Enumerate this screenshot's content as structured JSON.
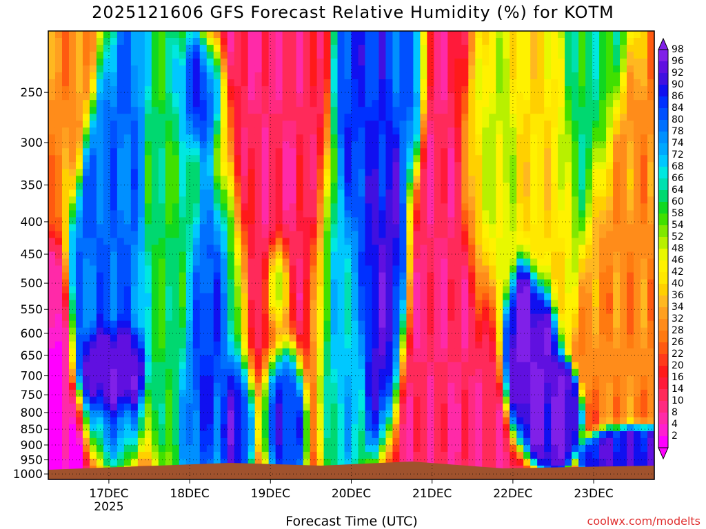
{
  "chart_data": {
    "type": "heatmap",
    "title": "2025121606 GFS Forecast Relative Humidity (%) for KOTM",
    "xlabel": "Forecast Time (UTC)",
    "ylabel": "",
    "credit": "coolwx.com/modelts",
    "x_ticks": [
      {
        "label": "17DEC",
        "sublabel": "2025",
        "hours": 18
      },
      {
        "label": "18DEC",
        "sublabel": "",
        "hours": 42
      },
      {
        "label": "19DEC",
        "sublabel": "",
        "hours": 66
      },
      {
        "label": "20DEC",
        "sublabel": "",
        "hours": 90
      },
      {
        "label": "21DEC",
        "sublabel": "",
        "hours": 114
      },
      {
        "label": "22DEC",
        "sublabel": "",
        "hours": 138
      },
      {
        "label": "23DEC",
        "sublabel": "",
        "hours": 162
      }
    ],
    "x_range_hours": [
      0,
      180
    ],
    "y_ticks": [
      250,
      300,
      350,
      400,
      450,
      500,
      550,
      600,
      650,
      700,
      750,
      800,
      850,
      900,
      950,
      1000
    ],
    "y_range_hpa": [
      200,
      1020
    ],
    "y_scale": "log",
    "colorbar_levels": [
      2,
      4,
      8,
      10,
      14,
      16,
      20,
      22,
      26,
      28,
      32,
      34,
      36,
      40,
      42,
      46,
      48,
      52,
      54,
      58,
      60,
      64,
      66,
      68,
      72,
      74,
      78,
      80,
      84,
      86,
      90,
      92,
      96,
      98
    ],
    "colorbar_colors": [
      "#ff00ff",
      "#ff1fd0",
      "#ff2aa8",
      "#ff2a80",
      "#ff2a5a",
      "#ff1a3a",
      "#ff1a1a",
      "#ff3a1a",
      "#ff5a10",
      "#ff7a10",
      "#ff8c1a",
      "#ffa020",
      "#ffb820",
      "#ffd000",
      "#ffe800",
      "#fff200",
      "#e8f800",
      "#b8f000",
      "#80e800",
      "#40e000",
      "#10d820",
      "#00d870",
      "#00e0b0",
      "#00e8e0",
      "#00c8ff",
      "#00a8ff",
      "#0090ff",
      "#0070ff",
      "#0050ff",
      "#0030ff",
      "#1010f0",
      "#4010e0",
      "#6010e0",
      "#8020e8"
    ],
    "colorbar_labels": [
      "98",
      "96",
      "92",
      "90",
      "86",
      "84",
      "80",
      "78",
      "74",
      "72",
      "68",
      "66",
      "64",
      "60",
      "58",
      "54",
      "52",
      "48",
      "46",
      "42",
      "40",
      "36",
      "34",
      "32",
      "28",
      "26",
      "22",
      "20",
      "16",
      "14",
      "10",
      "8",
      "4",
      "2"
    ],
    "terrain_color": "#a0522d",
    "grid": true,
    "rh_blobs": [
      {
        "t": 3,
        "p": 200,
        "rh": 30,
        "sx": 8,
        "sy": 0.25
      },
      {
        "t": 20,
        "p": 360,
        "rh": 80,
        "sx": 5,
        "sy": 0.35
      },
      {
        "t": 20,
        "p": 660,
        "rh": 96,
        "sx": 4,
        "sy": 0.08
      },
      {
        "t": 38,
        "p": 380,
        "rh": 60,
        "sx": 6,
        "sy": 0.35
      },
      {
        "t": 46,
        "p": 260,
        "rh": 92,
        "sx": 5,
        "sy": 0.15
      },
      {
        "t": 50,
        "p": 480,
        "rh": 90,
        "sx": 6,
        "sy": 0.35
      },
      {
        "t": 56,
        "p": 800,
        "rh": 95,
        "sx": 3,
        "sy": 0.15
      },
      {
        "t": 62,
        "p": 300,
        "rh": 10,
        "sx": 10,
        "sy": 0.6
      },
      {
        "t": 70,
        "p": 780,
        "rh": 90,
        "sx": 4,
        "sy": 0.15
      },
      {
        "t": 68,
        "p": 500,
        "rh": 70,
        "sx": 2,
        "sy": 0.12
      },
      {
        "t": 78,
        "p": 400,
        "rh": 12,
        "sx": 4,
        "sy": 0.4
      },
      {
        "t": 85,
        "p": 500,
        "rh": 70,
        "sx": 5,
        "sy": 0.3
      },
      {
        "t": 95,
        "p": 300,
        "rh": 85,
        "sx": 6,
        "sy": 0.3
      },
      {
        "t": 100,
        "p": 420,
        "rh": 92,
        "sx": 4,
        "sy": 0.3
      },
      {
        "t": 106,
        "p": 250,
        "rh": 80,
        "sx": 3,
        "sy": 0.2
      },
      {
        "t": 120,
        "p": 600,
        "rh": 10,
        "sx": 8,
        "sy": 0.6
      },
      {
        "t": 130,
        "p": 350,
        "rh": 50,
        "sx": 5,
        "sy": 0.3
      },
      {
        "t": 142,
        "p": 620,
        "rh": 96,
        "sx": 4,
        "sy": 0.15
      },
      {
        "t": 150,
        "p": 800,
        "rh": 95,
        "sx": 3,
        "sy": 0.08
      },
      {
        "t": 148,
        "p": 300,
        "rh": 40,
        "sx": 5,
        "sy": 0.3
      },
      {
        "t": 160,
        "p": 250,
        "rh": 62,
        "sx": 6,
        "sy": 0.3
      },
      {
        "t": 170,
        "p": 400,
        "rh": 30,
        "sx": 6,
        "sy": 0.3
      },
      {
        "t": 172,
        "p": 950,
        "rh": 90,
        "sx": 5,
        "sy": 0.05
      }
    ]
  }
}
